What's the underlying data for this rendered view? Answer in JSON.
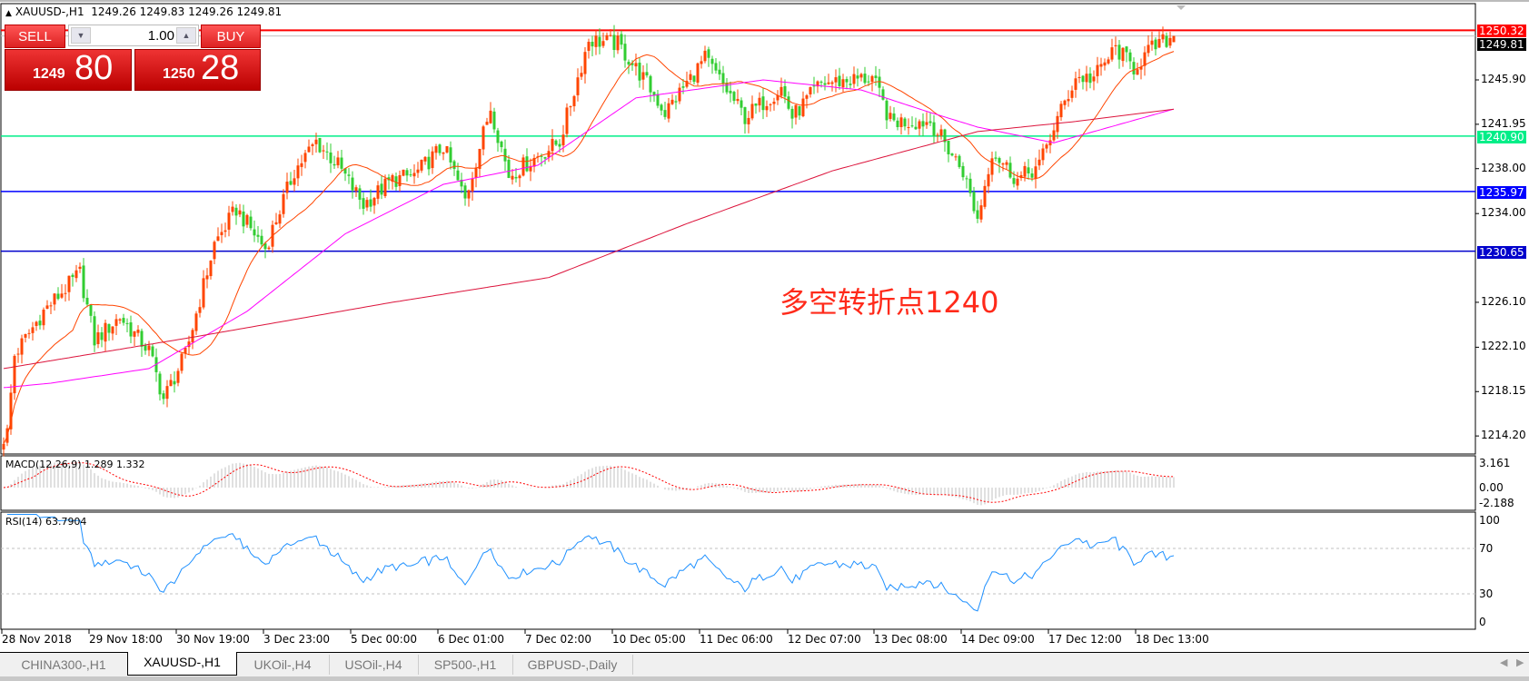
{
  "header": {
    "symbol_line": "XAUUSD-,H1",
    "ohlc": "1249.26 1249.83 1249.26 1249.81"
  },
  "trade_panel": {
    "sell_label": "SELL",
    "buy_label": "BUY",
    "lot_value": "1.00",
    "sell_price_prefix": "1249",
    "sell_price_main": "80",
    "buy_price_prefix": "1250",
    "buy_price_main": "28"
  },
  "price_axis": {
    "ticks": [
      "1245.90",
      "1241.95",
      "1238.00",
      "1234.00",
      "1226.10",
      "1222.10",
      "1218.15",
      "1214.20"
    ],
    "tick_values": [
      1245.9,
      1241.95,
      1238.0,
      1234.0,
      1226.1,
      1222.1,
      1218.15,
      1214.2
    ]
  },
  "horizontal_lines": [
    {
      "label": "1250.32",
      "value": 1250.32,
      "color": "#ff0000"
    },
    {
      "label": "1240.90",
      "value": 1240.9,
      "color": "#00ee88"
    },
    {
      "label": "1235.97",
      "value": 1235.97,
      "color": "#0000ff"
    },
    {
      "label": "1230.65",
      "value": 1230.65,
      "color": "#0000cc"
    }
  ],
  "bid_line": {
    "label": "1249.81",
    "value": 1249.81
  },
  "annotation": "多空转折点1240",
  "time_axis": [
    "28 Nov 2018",
    "29 Nov 18:00",
    "30 Nov 19:00",
    "3 Dec 23:00",
    "5 Dec 00:00",
    "6 Dec 01:00",
    "7 Dec 02:00",
    "10 Dec 05:00",
    "11 Dec 06:00",
    "12 Dec 07:00",
    "13 Dec 08:00",
    "14 Dec 09:00",
    "17 Dec 12:00",
    "18 Dec 13:00"
  ],
  "macd": {
    "label": "MACD(12,26,9) 1.289 1.332",
    "ticks": [
      "3.161",
      "0.00",
      "-2.188"
    ]
  },
  "rsi": {
    "label": "RSI(14) 63.7904",
    "ticks": [
      "100",
      "70",
      "30",
      "0"
    ]
  },
  "tabs": [
    {
      "label": "CHINA300-,H1",
      "active": false
    },
    {
      "label": "XAUUSD-,H1",
      "active": true
    },
    {
      "label": "UKOil-,H4",
      "active": false
    },
    {
      "label": "USOil-,H4",
      "active": false
    },
    {
      "label": "SP500-,H1",
      "active": false
    },
    {
      "label": "GBPUSD-,Daily",
      "active": false
    }
  ],
  "colors": {
    "bull": "#ff4500",
    "bear": "#32cd32",
    "ma_fast": "#ff4500",
    "ma_mid": "#ff00ff",
    "ma_slow": "#dc143c",
    "rsi": "#1e90ff",
    "macd_hist": "#c0c0c0",
    "macd_signal": "#ff0000"
  },
  "chart_data": {
    "type": "candlestick",
    "symbol": "XAUUSD-",
    "timeframe": "H1",
    "bar_count": 323,
    "close_path": [
      [
        0,
        1214.0
      ],
      [
        1,
        1214.5
      ],
      [
        3,
        1221.4
      ],
      [
        11,
        1225.3
      ],
      [
        21,
        1228.7
      ],
      [
        25,
        1222.7
      ],
      [
        32,
        1224.8
      ],
      [
        40,
        1221.8
      ],
      [
        44,
        1217.5
      ],
      [
        50,
        1221.4
      ],
      [
        58,
        1231.3
      ],
      [
        64,
        1234.4
      ],
      [
        72,
        1230.9
      ],
      [
        80,
        1237.8
      ],
      [
        86,
        1240.4
      ],
      [
        92,
        1238.3
      ],
      [
        99,
        1234.8
      ],
      [
        107,
        1237.0
      ],
      [
        113,
        1237.4
      ],
      [
        121,
        1240.0
      ],
      [
        127,
        1235.2
      ],
      [
        134,
        1243.5
      ],
      [
        139,
        1237.4
      ],
      [
        153,
        1240.4
      ],
      [
        161,
        1249.5
      ],
      [
        169,
        1249.1
      ],
      [
        177,
        1245.6
      ],
      [
        182,
        1243.0
      ],
      [
        193,
        1247.8
      ],
      [
        204,
        1242.6
      ],
      [
        214,
        1245.2
      ],
      [
        217,
        1242.6
      ],
      [
        225,
        1245.6
      ],
      [
        239,
        1246.1
      ],
      [
        244,
        1242.2
      ],
      [
        255,
        1242.2
      ],
      [
        264,
        1237.8
      ],
      [
        268,
        1233.5
      ],
      [
        272,
        1239.6
      ],
      [
        279,
        1237.0
      ],
      [
        285,
        1238.3
      ],
      [
        289,
        1241.7
      ],
      [
        295,
        1246.1
      ],
      [
        300,
        1246.1
      ],
      [
        306,
        1248.7
      ],
      [
        311,
        1247.0
      ],
      [
        316,
        1248.7
      ],
      [
        322,
        1249.81
      ]
    ],
    "ma_mid_path": [
      [
        0,
        1218.5
      ],
      [
        13,
        1218.9
      ],
      [
        40,
        1220.2
      ],
      [
        67,
        1225.3
      ],
      [
        94,
        1232.2
      ],
      [
        121,
        1236.6
      ],
      [
        147,
        1238.3
      ],
      [
        174,
        1244.3
      ],
      [
        209,
        1245.9
      ],
      [
        236,
        1245.0
      ],
      [
        255,
        1243.0
      ],
      [
        268,
        1241.7
      ],
      [
        289,
        1240.3
      ],
      [
        322,
        1243.3
      ]
    ],
    "ma_slow_path": [
      [
        0,
        1220.2
      ],
      [
        54,
        1223.1
      ],
      [
        107,
        1226.1
      ],
      [
        150,
        1228.3
      ],
      [
        188,
        1233.1
      ],
      [
        228,
        1237.8
      ],
      [
        268,
        1241.3
      ],
      [
        295,
        1242.2
      ],
      [
        322,
        1243.3
      ]
    ],
    "ylim": [
      1211.8,
      1253.0
    ]
  }
}
